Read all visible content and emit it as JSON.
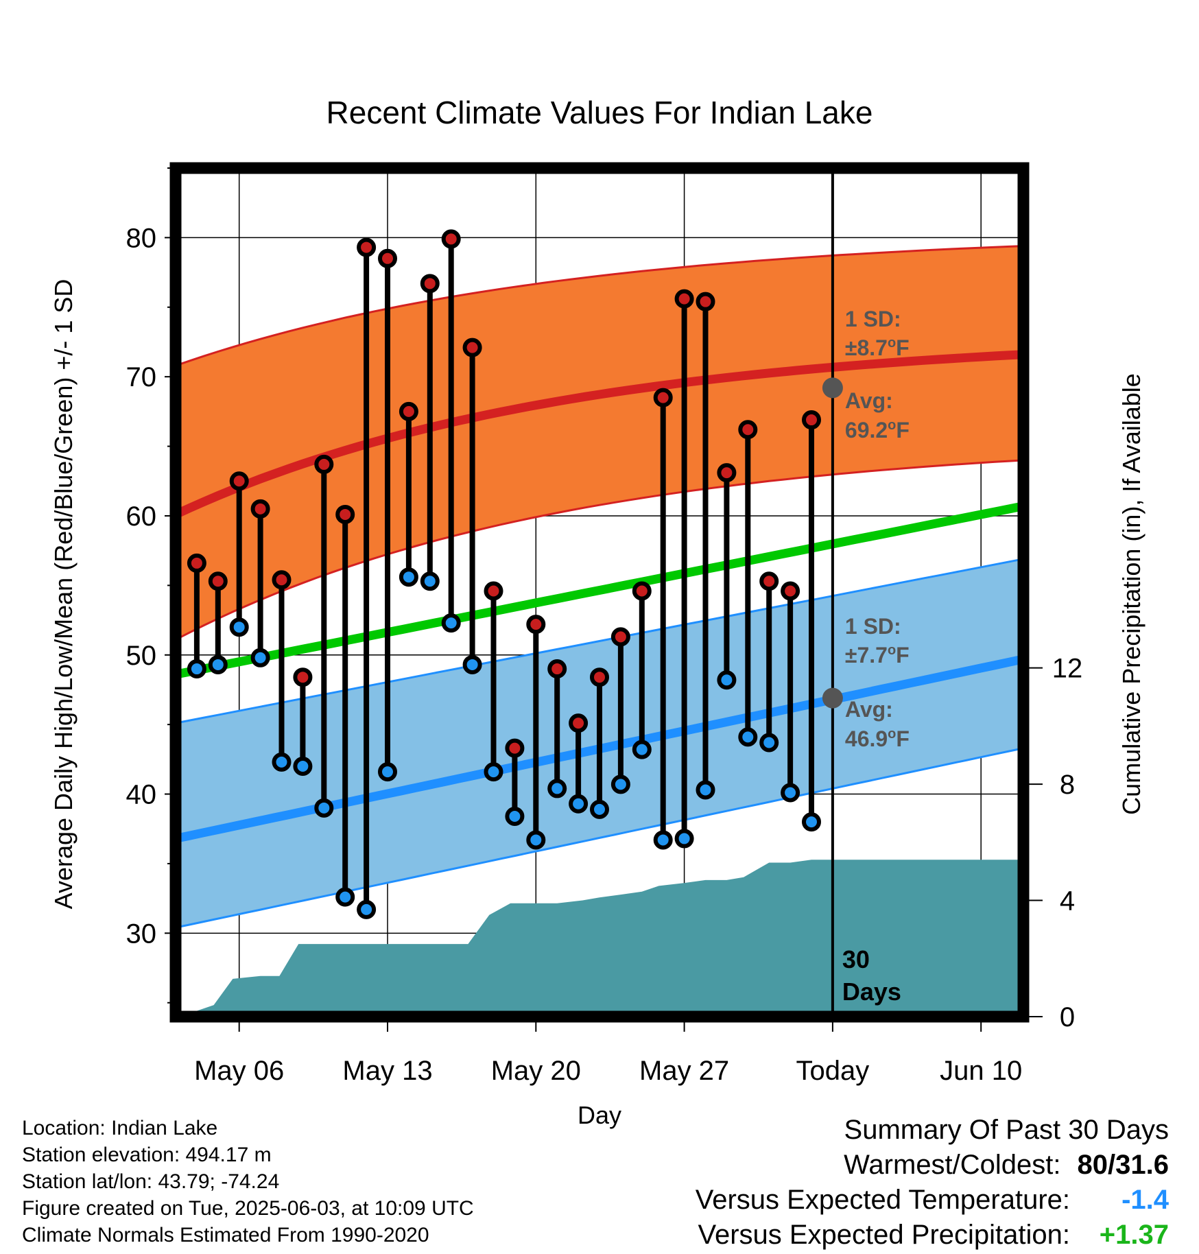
{
  "chart_data": {
    "type": "line",
    "title": "Recent Climate Values For Indian Lake",
    "xlabel": "Day",
    "ylabel_left": "Average Daily High/Low/Mean (Red/Blue/Green) +/- 1 SD",
    "ylabel_right": "Cumulative Precipitation (in), If Available",
    "x_tick_labels": [
      "May 06",
      "May 13",
      "May 20",
      "May 27",
      "Today",
      "Jun 10"
    ],
    "x_tick_days": [
      6,
      13,
      20,
      27,
      34,
      41
    ],
    "y_left_ticks": [
      30,
      40,
      50,
      60,
      70,
      80
    ],
    "y_left_range": [
      24,
      85
    ],
    "y_right_ticks": [
      0,
      4,
      8,
      12
    ],
    "y_right_range": [
      0,
      29.2
    ],
    "x_range": [
      3,
      43
    ],
    "grid": true,
    "days": [
      4,
      5,
      6,
      7,
      8,
      9,
      10,
      11,
      12,
      13,
      14,
      15,
      16,
      17,
      18,
      19,
      20,
      21,
      22,
      23,
      24,
      25,
      26,
      27,
      28,
      29,
      30,
      31,
      32,
      33
    ],
    "highs": [
      56.6,
      55.3,
      62.5,
      60.5,
      55.4,
      48.4,
      63.7,
      60.1,
      79.3,
      78.5,
      67.5,
      76.7,
      79.9,
      72.1,
      54.6,
      43.3,
      52.2,
      49.0,
      45.1,
      48.4,
      51.3,
      54.6,
      68.5,
      75.6,
      75.4,
      63.1,
      66.2,
      55.3,
      54.6,
      66.9
    ],
    "lows": [
      49.0,
      49.3,
      52.0,
      49.8,
      42.3,
      42.0,
      39.0,
      32.6,
      31.7,
      41.6,
      55.6,
      55.3,
      52.3,
      49.3,
      41.6,
      38.4,
      36.7,
      40.4,
      39.3,
      38.9,
      40.7,
      43.2,
      36.7,
      36.8,
      40.3,
      48.2,
      44.1,
      43.7,
      40.1,
      38.0
    ],
    "normals": {
      "mean": {
        "start": 48.6,
        "end": 60.7
      },
      "high": {
        "start": 60.1,
        "end": 71.6
      },
      "high_upper": {
        "start": 70.8,
        "end": 79.4
      },
      "high_lower": {
        "start": 51.1,
        "end": 64.0
      },
      "low": {
        "start": 36.8,
        "end": 49.7
      },
      "low_upper": {
        "start": 45.1,
        "end": 56.9
      },
      "low_lower": {
        "start": 30.4,
        "end": 43.3
      }
    },
    "precip_days": [
      3.2,
      4.8,
      5.7,
      7.0,
      7.9,
      8.8,
      9.7,
      10.7,
      11.7,
      12.7,
      13.7,
      14.7,
      15.6,
      16.8,
      17.8,
      18.8,
      20.0,
      21.0,
      22.2,
      23.0,
      24.0,
      25.0,
      25.8,
      27.0,
      28.0,
      29.0,
      29.8,
      31.0,
      32.0,
      33.0,
      34.0,
      43.0
    ],
    "precip_values": [
      0.0,
      0.4,
      1.3,
      1.4,
      1.4,
      2.5,
      2.5,
      2.5,
      2.5,
      2.5,
      2.5,
      2.5,
      2.5,
      2.5,
      3.5,
      3.9,
      3.9,
      3.9,
      4.0,
      4.1,
      4.2,
      4.3,
      4.5,
      4.6,
      4.7,
      4.7,
      4.8,
      5.3,
      5.3,
      5.4,
      5.4,
      5.4
    ],
    "today_day": 34,
    "today_high_avg_dot": 69.2,
    "today_low_avg_dot": 46.9,
    "annotations": {
      "high_sd_label": "1 SD:",
      "high_sd_value": "±8.7",
      "high_avg_label": "Avg:",
      "high_avg_value": "69.2",
      "low_sd_label": "1 SD:",
      "low_sd_value": "±7.7",
      "low_avg_label": "Avg:",
      "low_avg_value": "46.9",
      "deg_symbol": "o",
      "unit": "F",
      "days_num": "30",
      "days_word": "Days"
    },
    "colors": {
      "high_band": "#f47a30",
      "high_line": "#d42121",
      "low_band": "#84c0e6",
      "low_line": "#1f8fff",
      "mean_line": "#00c800",
      "precip_fill": "#4a9aa3",
      "high_dot": "#c81e1e",
      "low_dot": "#2094f0",
      "annotation_dot": "#555555"
    }
  },
  "info": {
    "location": "Location: Indian Lake",
    "elevation": "Station elevation: 494.17 m",
    "latlon": "Station lat/lon: 43.79; -74.24",
    "created": "Figure created on Tue, 2025-06-03, at 10:09 UTC",
    "normals": "Climate Normals Estimated From 1990-2020"
  },
  "summary": {
    "heading": "Summary Of Past 30 Days",
    "warmest_label": "Warmest/Coldest:",
    "warmest_value": "80/31.6",
    "temp_label": "Versus Expected Temperature:",
    "temp_value": "-1.4",
    "temp_color": "#1f8fff",
    "precip_label": "Versus Expected Precipitation:",
    "precip_value": "+1.37",
    "precip_color": "#1ab51a"
  }
}
